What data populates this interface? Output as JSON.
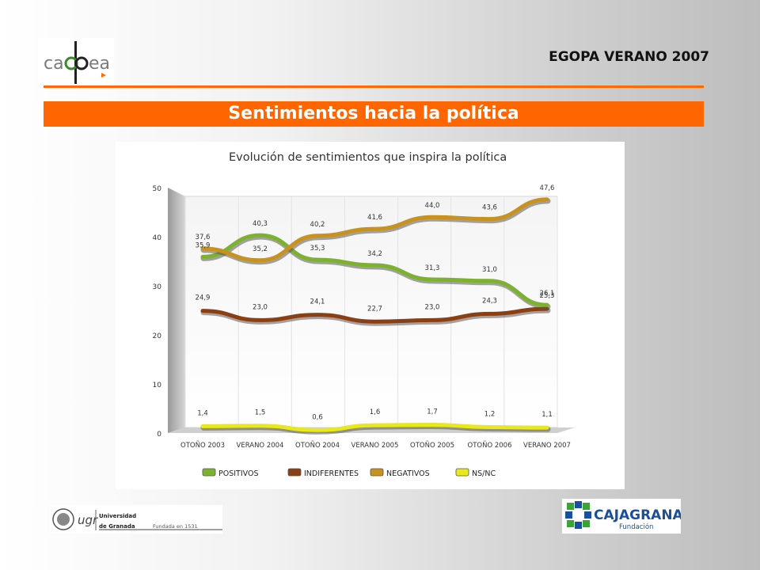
{
  "header": {
    "logo_text": "cadpea",
    "title": "EGOPA VERANO 2007"
  },
  "banner": {
    "title": "Sentimientos hacia la política"
  },
  "chart_data": {
    "type": "line",
    "title": "Evolución de sentimientos que inspira la política",
    "categories": [
      "OTOÑO 2003",
      "VERANO 2004",
      "OTOÑO 2004",
      "VERANO 2005",
      "OTOÑO 2005",
      "OTOÑO 2006",
      "VERANO 2007"
    ],
    "ylim": [
      0,
      50
    ],
    "yticks": [
      0,
      10,
      20,
      30,
      40,
      50
    ],
    "grid": true,
    "legend_position": "bottom",
    "series": [
      {
        "name": "POSITIVOS",
        "color": "#7db22e",
        "values": [
          35.9,
          40.3,
          35.3,
          34.2,
          31.3,
          31.0,
          26.1
        ],
        "labels": [
          "35,9",
          "40,3",
          "35,3",
          "34,2",
          "31,3",
          "31,0",
          "26,1"
        ]
      },
      {
        "name": "INDIFERENTES",
        "color": "#8b3f12",
        "values": [
          24.9,
          23.0,
          24.1,
          22.7,
          23.0,
          24.3,
          25.3
        ],
        "labels": [
          "24,9",
          "23,0",
          "24,1",
          "22,7",
          "23,0",
          "24,3",
          "25,3"
        ]
      },
      {
        "name": "NEGATIVOS",
        "color": "#c8921c",
        "values": [
          37.6,
          35.2,
          40.2,
          41.6,
          44.0,
          43.6,
          47.6
        ],
        "labels": [
          "37,6",
          "35,2",
          "40,2",
          "41,6",
          "44,0",
          "43,6",
          "47,6"
        ]
      },
      {
        "name": "NS/NC",
        "color": "#e8e81a",
        "values": [
          1.4,
          1.5,
          0.6,
          1.6,
          1.7,
          1.2,
          1.1
        ],
        "labels": [
          "1,4",
          "1,5",
          "0,6",
          "1,6",
          "1,7",
          "1,2",
          "1,1"
        ]
      }
    ]
  },
  "footer": {
    "ugr_acronym": "ugr",
    "ugr_name_1": "Universidad",
    "ugr_name_2": "de Granada",
    "ugr_founded": "Fundada en 1531",
    "caja_name": "CAJAGRANADA",
    "caja_sub": "Fundación"
  }
}
